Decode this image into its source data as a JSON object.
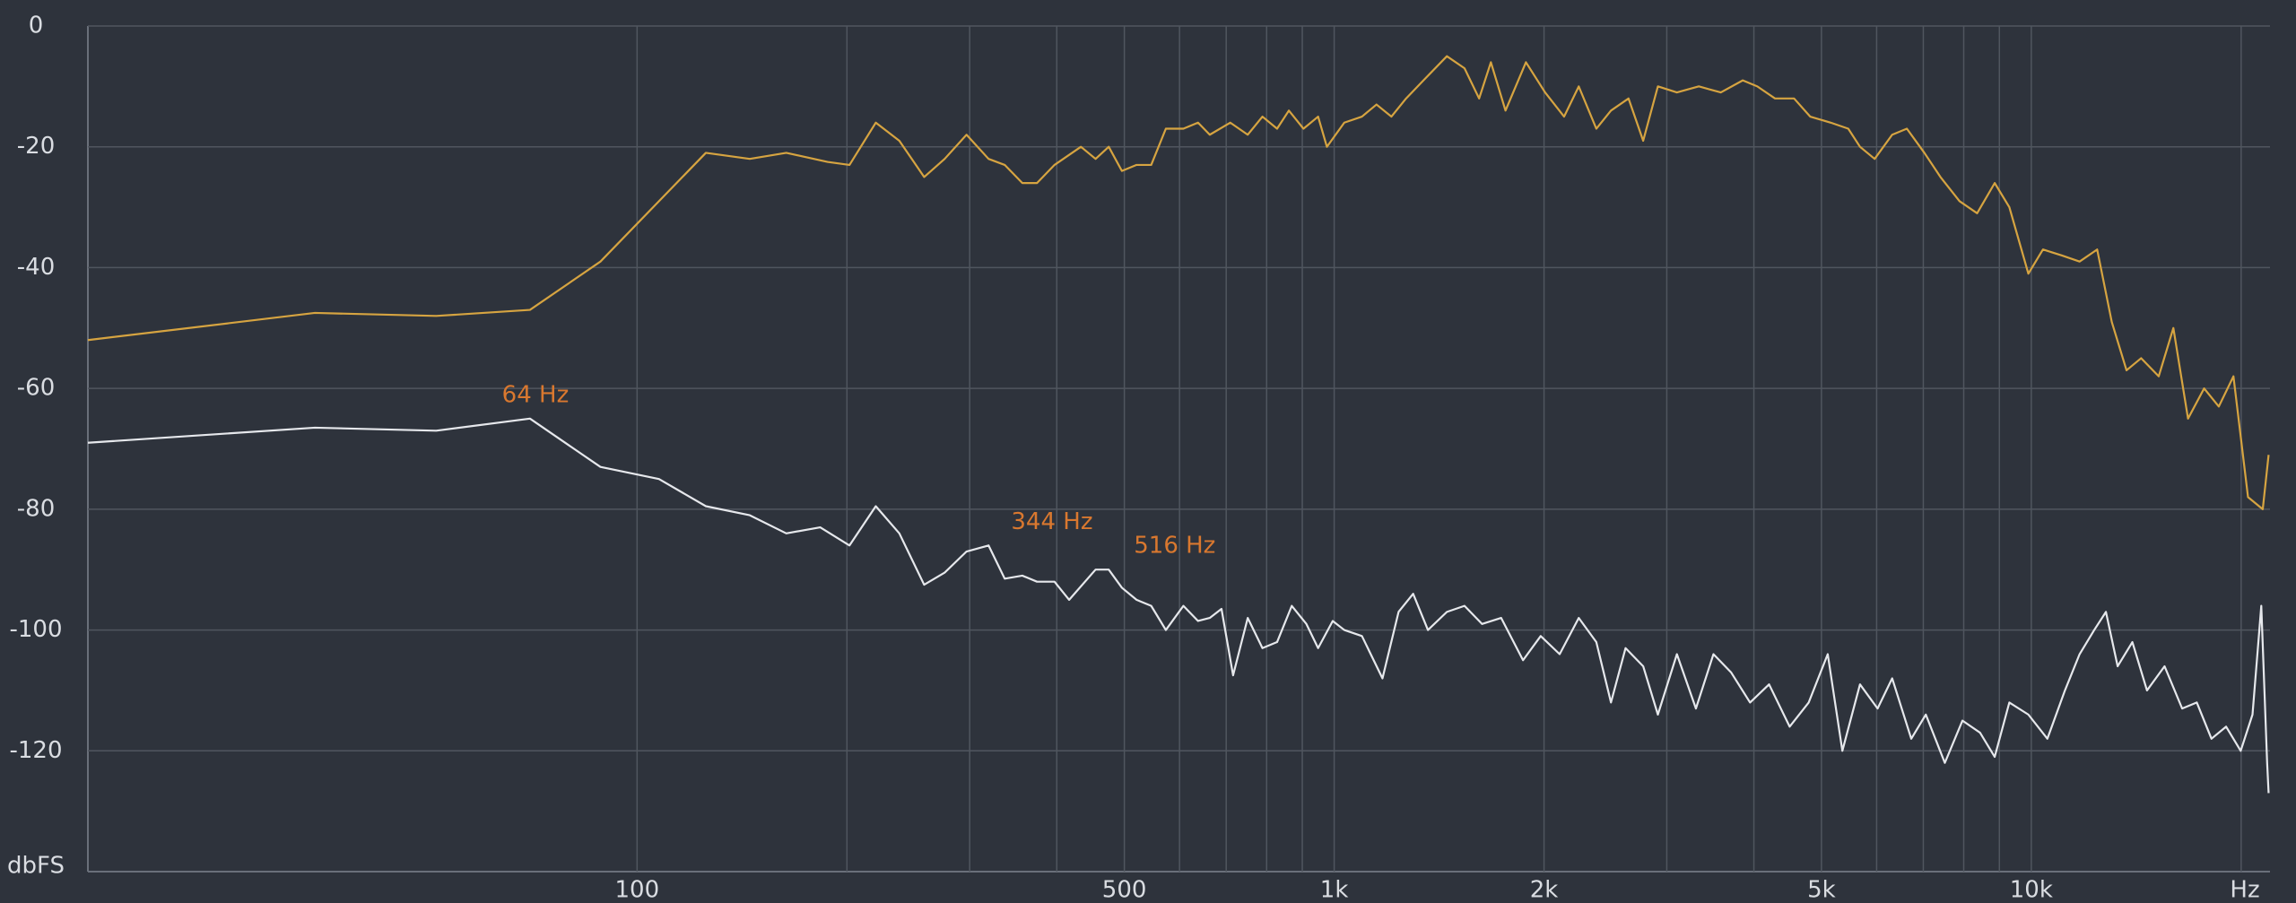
{
  "chart_data": {
    "type": "line",
    "xlabel": "Hz",
    "ylabel": "dbFS",
    "xscale": "log",
    "xlim": [
      16.3,
      22000
    ],
    "ylim": [
      -140,
      0
    ],
    "xticks": [
      100,
      500,
      {
        "value": 1000,
        "label": "1k"
      },
      {
        "value": 2000,
        "label": "2k"
      },
      {
        "value": 5000,
        "label": "5k"
      },
      {
        "value": 10000,
        "label": "10k"
      }
    ],
    "xminor": [
      200,
      300,
      400,
      600,
      700,
      800,
      900,
      3000,
      4000,
      6000,
      7000,
      8000,
      9000,
      20000
    ],
    "yticks": [
      0,
      -20,
      -40,
      -60,
      -80,
      -100,
      -120
    ],
    "grid": true,
    "series": [
      {
        "color": "#d6a441",
        "x": [
          16.3,
          34.5,
          51.5,
          70.2,
          88.6,
          125.5,
          145.1,
          163.7,
          187.6,
          201.7,
          220,
          237.8,
          258.1,
          276.2,
          296.9,
          319.3,
          336.8,
          357,
          374.7,
          397,
          433.2,
          454.7,
          474.9,
          496,
          520.6,
          546.4,
          573.5,
          607.7,
          637.8,
          663,
          709.4,
          751.6,
          789,
          828.1,
          861,
          903.6,
          948.3,
          976.2,
          1034,
          1096,
          1150,
          1208,
          1268,
          1343,
          1451,
          1538,
          1614,
          1678,
          1761,
          1884,
          2007,
          2137,
          2243,
          2377,
          2495,
          2644,
          2775,
          2913,
          3102,
          3335,
          3586,
          3856,
          4046,
          4289,
          4568,
          4818,
          5155,
          5463,
          5679,
          5961,
          6316,
          6630,
          7025,
          7408,
          7889,
          8362,
          8862,
          9301,
          9904,
          10394,
          11069,
          11730,
          12431,
          13046,
          13697,
          14375,
          15233,
          15989,
          16782,
          17699,
          18576,
          19498,
          20460,
          21480,
          21900
        ],
        "values": [
          -52,
          -47.5,
          -48,
          -47,
          -39,
          -21,
          -22,
          -21,
          -22.5,
          -23,
          -16,
          -19,
          -25,
          -22,
          -18,
          -22,
          -23,
          -26,
          -26,
          -23,
          -20,
          -22,
          -20,
          -24,
          -23,
          -23,
          -17,
          -17,
          -16,
          -18,
          -16,
          -18,
          -15,
          -17,
          -14,
          -17,
          -15,
          -20,
          -16,
          -15,
          -13,
          -15,
          -12,
          -9,
          -5,
          -7,
          -12,
          -6,
          -14,
          -6,
          -11,
          -15,
          -10,
          -17,
          -14,
          -12,
          -19,
          -10,
          -11,
          -10,
          -11,
          -9,
          -10,
          -12,
          -12,
          -15,
          -16,
          -17,
          -20,
          -22,
          -18,
          -17,
          -21,
          -25,
          -29,
          -31,
          -26,
          -30,
          -41,
          -37,
          -38,
          -39,
          -37,
          -49,
          -57,
          -55,
          -58,
          -50,
          -65,
          -60,
          -63,
          -58,
          -78,
          -80,
          -71
        ]
      },
      {
        "color": "#e6e8ec",
        "x": [
          16.3,
          34.5,
          51.5,
          70.2,
          88.6,
          107.5,
          125.5,
          145.1,
          163.7,
          183.1,
          201.7,
          220,
          237.8,
          258.1,
          276.2,
          296.9,
          319.3,
          336.8,
          357,
          374.7,
          397,
          416.7,
          454.7,
          474.9,
          496,
          520.6,
          546.4,
          573.5,
          607.7,
          637.8,
          663,
          689.2,
          716.1,
          751.6,
          789,
          828.1,
          869.3,
          912.3,
          948.3,
          995.2,
          1034,
          1096,
          1173,
          1237,
          1298,
          1363,
          1451,
          1538,
          1630,
          1736,
          1866,
          1978,
          2106,
          2243,
          2377,
          2495,
          2618,
          2775,
          2913,
          3102,
          3303,
          3500,
          3709,
          3950,
          4206,
          4502,
          4794,
          5105,
          5358,
          5679,
          6019,
          6316,
          6727,
          7059,
          7516,
          7967,
          8443,
          8862,
          9301,
          9904,
          10546,
          11176,
          11730,
          12311,
          12796,
          13301,
          13964,
          14655,
          15531,
          16460,
          17276,
          18133,
          19030,
          19971,
          20765,
          21376,
          21794,
          21900
        ],
        "values": [
          -69,
          -66.5,
          -67,
          -65,
          -73,
          -75,
          -79.5,
          -81,
          -84,
          -83,
          -86,
          -79.5,
          -84,
          -92.5,
          -90.5,
          -87,
          -86,
          -91.5,
          -91,
          -92,
          -92,
          -95,
          -90,
          -90,
          -93,
          -95,
          -96,
          -100,
          -96,
          -98.5,
          -98,
          -96.5,
          -107.5,
          -98,
          -103,
          -102,
          -96,
          -99,
          -103,
          -98.5,
          -100,
          -101,
          -108,
          -97,
          -94,
          -100,
          -97,
          -96,
          -99,
          -98,
          -105,
          -101,
          -104,
          -98,
          -102,
          -112,
          -103,
          -106,
          -114,
          -104,
          -113,
          -104,
          -107,
          -112,
          -109,
          -116,
          -112,
          -104,
          -120,
          -109,
          -113,
          -108,
          -118,
          -114,
          -122,
          -115,
          -117,
          -121,
          -112,
          -114,
          -118,
          -110,
          -104,
          -100,
          -97,
          -106,
          -102,
          -110,
          -106,
          -113,
          -112,
          -118,
          -116,
          -120,
          -114,
          -96,
          -122,
          -127
        ]
      }
    ],
    "annotation_color": "#d9782f",
    "annotations": [
      {
        "text": "64 Hz",
        "x": 64,
        "y": -65
      },
      {
        "text": "344 Hz",
        "x": 344,
        "y": -86
      },
      {
        "text": "516 Hz",
        "x": 516,
        "y": -90
      }
    ]
  }
}
